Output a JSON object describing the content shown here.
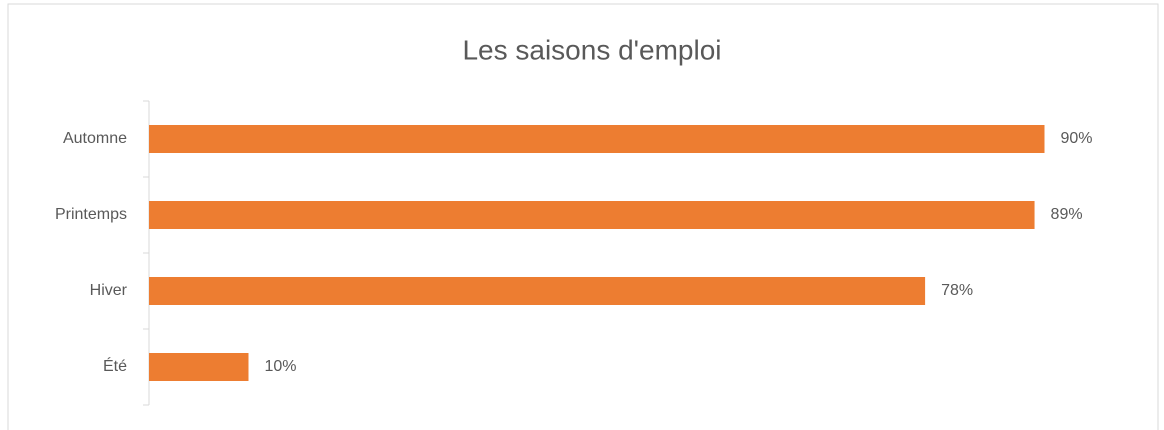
{
  "chart_data": {
    "type": "hbar",
    "title": "Les saisons d'emploi",
    "categories": [
      "Automne",
      "Printemps",
      "Hiver",
      "Été"
    ],
    "values": [
      90,
      89,
      78,
      10
    ],
    "value_labels": [
      "90%",
      "89%",
      "78%",
      "10%"
    ],
    "color": "#ed7d31",
    "xlim": [
      0,
      100
    ]
  }
}
